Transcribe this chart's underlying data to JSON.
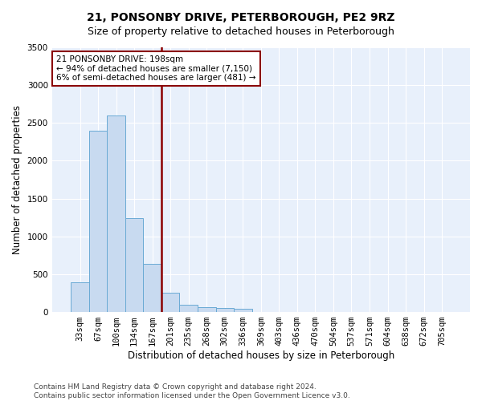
{
  "title": "21, PONSONBY DRIVE, PETERBOROUGH, PE2 9RZ",
  "subtitle": "Size of property relative to detached houses in Peterborough",
  "xlabel": "Distribution of detached houses by size in Peterborough",
  "ylabel": "Number of detached properties",
  "categories": [
    "33sqm",
    "67sqm",
    "100sqm",
    "134sqm",
    "167sqm",
    "201sqm",
    "235sqm",
    "268sqm",
    "302sqm",
    "336sqm",
    "369sqm",
    "403sqm",
    "436sqm",
    "470sqm",
    "504sqm",
    "537sqm",
    "571sqm",
    "604sqm",
    "638sqm",
    "672sqm",
    "705sqm"
  ],
  "values": [
    390,
    2400,
    2600,
    1240,
    640,
    260,
    100,
    60,
    55,
    40,
    0,
    0,
    0,
    0,
    0,
    0,
    0,
    0,
    0,
    0,
    0
  ],
  "bar_color": "#c8daf0",
  "bar_edge_color": "#6aaad4",
  "vline_index": 5,
  "vline_color": "#8B0000",
  "annotation_text": "21 PONSONBY DRIVE: 198sqm\n← 94% of detached houses are smaller (7,150)\n6% of semi-detached houses are larger (481) →",
  "annotation_box_edge_color": "#8B0000",
  "annotation_text_color": "#000000",
  "ylim": [
    0,
    3500
  ],
  "background_color": "#e8f0fb",
  "grid_color": "#ffffff",
  "footer_text": "Contains HM Land Registry data © Crown copyright and database right 2024.\nContains public sector information licensed under the Open Government Licence v3.0.",
  "title_fontsize": 10,
  "subtitle_fontsize": 9,
  "xlabel_fontsize": 8.5,
  "ylabel_fontsize": 8.5,
  "tick_fontsize": 7.5,
  "annotation_fontsize": 7.5,
  "footer_fontsize": 6.5
}
